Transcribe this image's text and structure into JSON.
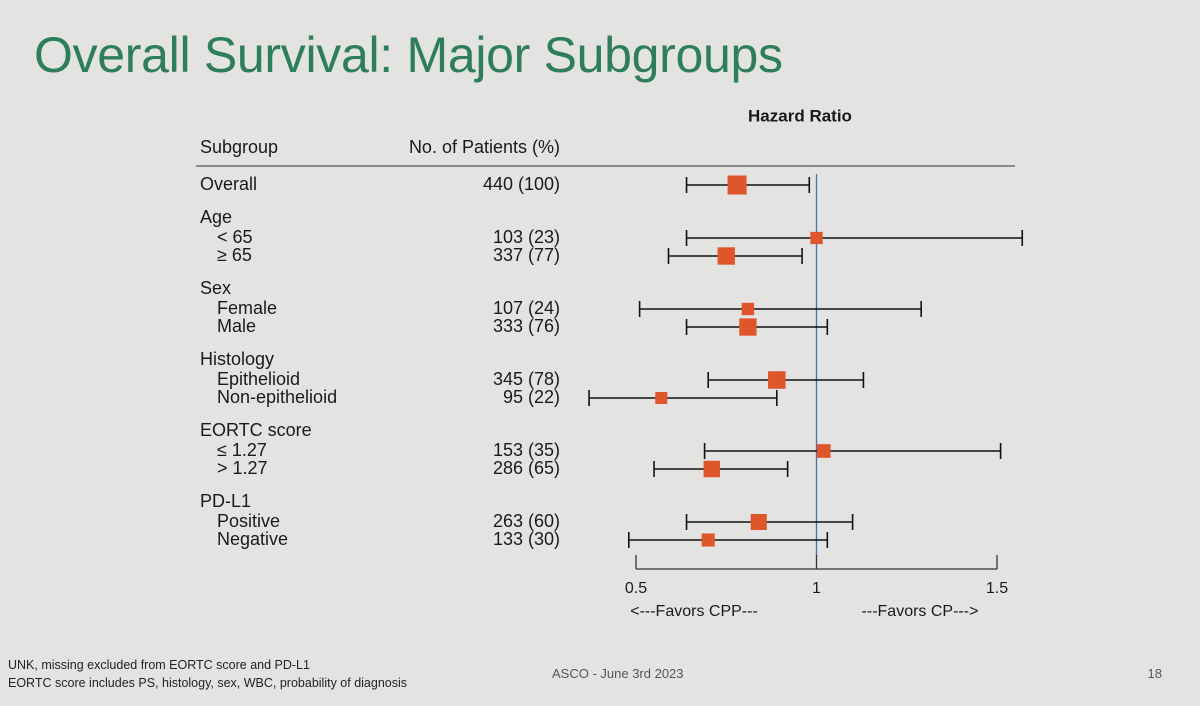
{
  "slide": {
    "title": "Overall Survival: Major Subgroups",
    "footnote_line1": "UNK, missing excluded from EORTC score and PD-L1",
    "footnote_line2": "EORTC score includes PS, histology, sex,  WBC, probability of diagnosis",
    "footer": "ASCO  - June 3rd 2023",
    "page_number": "18"
  },
  "colors": {
    "background": "#e3e4e2",
    "title": "#2e7d5b",
    "marker": "#e0562b",
    "reference_line": "#4a6fb3",
    "whisker": "#111111"
  },
  "chart_data": {
    "type": "forest",
    "title": "Hazard Ratio",
    "column_headers": {
      "subgroup": "Subgroup",
      "patients": "No. of Patients (%)"
    },
    "x_axis": {
      "ticks": [
        0.5,
        1,
        1.5
      ],
      "tick_labels": [
        "0.5",
        "1",
        "1.5"
      ],
      "range": [
        0.5,
        1.5
      ],
      "reference_line": 1
    },
    "favors_left": "<---Favors CPP---",
    "favors_right": "---Favors CP--->",
    "groups": [
      {
        "label": "Overall",
        "rows": [
          {
            "label": "Overall",
            "patients": "440 (100)",
            "hr": 0.78,
            "lo": 0.64,
            "hi": 0.98,
            "weight": 440,
            "header_row": true
          }
        ]
      },
      {
        "label": "Age",
        "rows": [
          {
            "label": "< 65",
            "patients": "103 (23)",
            "hr": 1.0,
            "lo": 0.64,
            "hi": 1.57,
            "weight": 103
          },
          {
            "label": "≥ 65",
            "patients": "337 (77)",
            "hr": 0.75,
            "lo": 0.59,
            "hi": 0.96,
            "weight": 337
          }
        ]
      },
      {
        "label": "Sex",
        "rows": [
          {
            "label": "Female",
            "patients": "107 (24)",
            "hr": 0.81,
            "lo": 0.51,
            "hi": 1.29,
            "weight": 107
          },
          {
            "label": "Male",
            "patients": "333 (76)",
            "hr": 0.81,
            "lo": 0.64,
            "hi": 1.03,
            "weight": 333
          }
        ]
      },
      {
        "label": "Histology",
        "rows": [
          {
            "label": "Epithelioid",
            "patients": "345 (78)",
            "hr": 0.89,
            "lo": 0.7,
            "hi": 1.13,
            "weight": 345
          },
          {
            "label": "Non-epithelioid",
            "patients": "95 (22)",
            "hr": 0.57,
            "lo": 0.37,
            "hi": 0.89,
            "weight": 95
          }
        ]
      },
      {
        "label": "EORTC score",
        "rows": [
          {
            "label": "≤ 1.27",
            "patients": "153 (35)",
            "hr": 1.02,
            "lo": 0.69,
            "hi": 1.51,
            "weight": 153
          },
          {
            "label": "> 1.27",
            "patients": "286 (65)",
            "hr": 0.71,
            "lo": 0.55,
            "hi": 0.92,
            "weight": 286
          }
        ]
      },
      {
        "label": "PD-L1",
        "rows": [
          {
            "label": "Positive",
            "patients": "263 (60)",
            "hr": 0.84,
            "lo": 0.64,
            "hi": 1.1,
            "weight": 263
          },
          {
            "label": "Negative",
            "patients": "133 (30)",
            "hr": 0.7,
            "lo": 0.48,
            "hi": 1.03,
            "weight": 133
          }
        ]
      }
    ]
  }
}
